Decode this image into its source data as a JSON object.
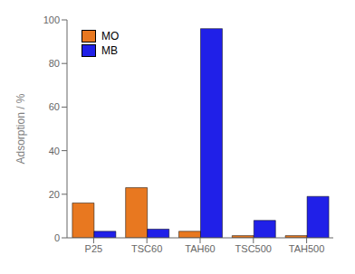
{
  "chart_data": {
    "type": "bar",
    "categories": [
      "P25",
      "TSC60",
      "TAH60",
      "TSC500",
      "TAH500"
    ],
    "series": [
      {
        "name": "MO",
        "color": "#E87820",
        "values": [
          16,
          23,
          3,
          1,
          1
        ]
      },
      {
        "name": "MB",
        "color": "#2020E8",
        "values": [
          3,
          4,
          96,
          8,
          19
        ]
      }
    ],
    "ylabel": "Adsorption / %",
    "ylim": [
      0,
      100
    ],
    "yticks": [
      0,
      20,
      40,
      60,
      80,
      100
    ],
    "grid": false,
    "legend": "upper left"
  }
}
